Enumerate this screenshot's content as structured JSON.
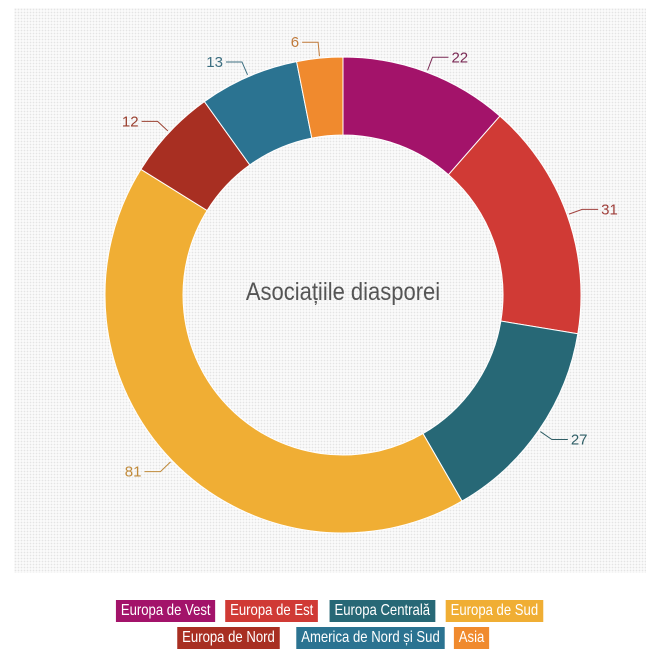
{
  "chart_data": {
    "type": "pie",
    "subtype": "donut",
    "title": "Asociațiile diasporei",
    "categories": [
      "Europa de Vest",
      "Europa de Est",
      "Europa Centrală",
      "Europa de Sud",
      "Europa de Nord",
      "America de Nord și Sud",
      "Asia"
    ],
    "values": [
      22,
      31,
      27,
      81,
      12,
      13,
      6
    ],
    "colors": [
      "#a3136a",
      "#d03a35",
      "#276876",
      "#f0ae34",
      "#a82f22",
      "#2b7391",
      "#f08a2e"
    ],
    "label_colors": [
      "#7a2a55",
      "#a0403c",
      "#2f5e66",
      "#c08a3a",
      "#9a4030",
      "#3c6e80",
      "#c07a3a"
    ],
    "legend": {
      "placement": "bottom"
    }
  },
  "legend_rows": [
    [
      0,
      1,
      2,
      3
    ],
    [
      4,
      5,
      6
    ]
  ]
}
